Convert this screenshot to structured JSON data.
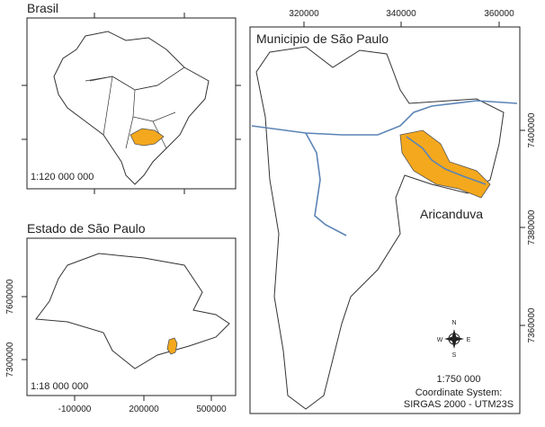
{
  "brasil": {
    "title": "Brasil",
    "scale": "1:120 000 000"
  },
  "estado": {
    "title": "Estado de São Paulo",
    "scale": "1:18 000 000",
    "yticks": [
      "7600000",
      "7300000"
    ],
    "xticks": [
      "-100000",
      "200000",
      "500000"
    ]
  },
  "municipio": {
    "title": "Municipio de São Paulo",
    "xticks": [
      "320000",
      "340000",
      "360000"
    ],
    "yticks": [
      "7400000",
      "7380000",
      "7360000"
    ],
    "area_label": "Aricanduva",
    "scale": "1:750 000",
    "coordinate_label": "Coordinate System:",
    "coordinate_system": "SIRGAS 2000 - UTM23S",
    "compass": {
      "n": "N",
      "e": "E",
      "s": "S",
      "w": "W"
    }
  }
}
